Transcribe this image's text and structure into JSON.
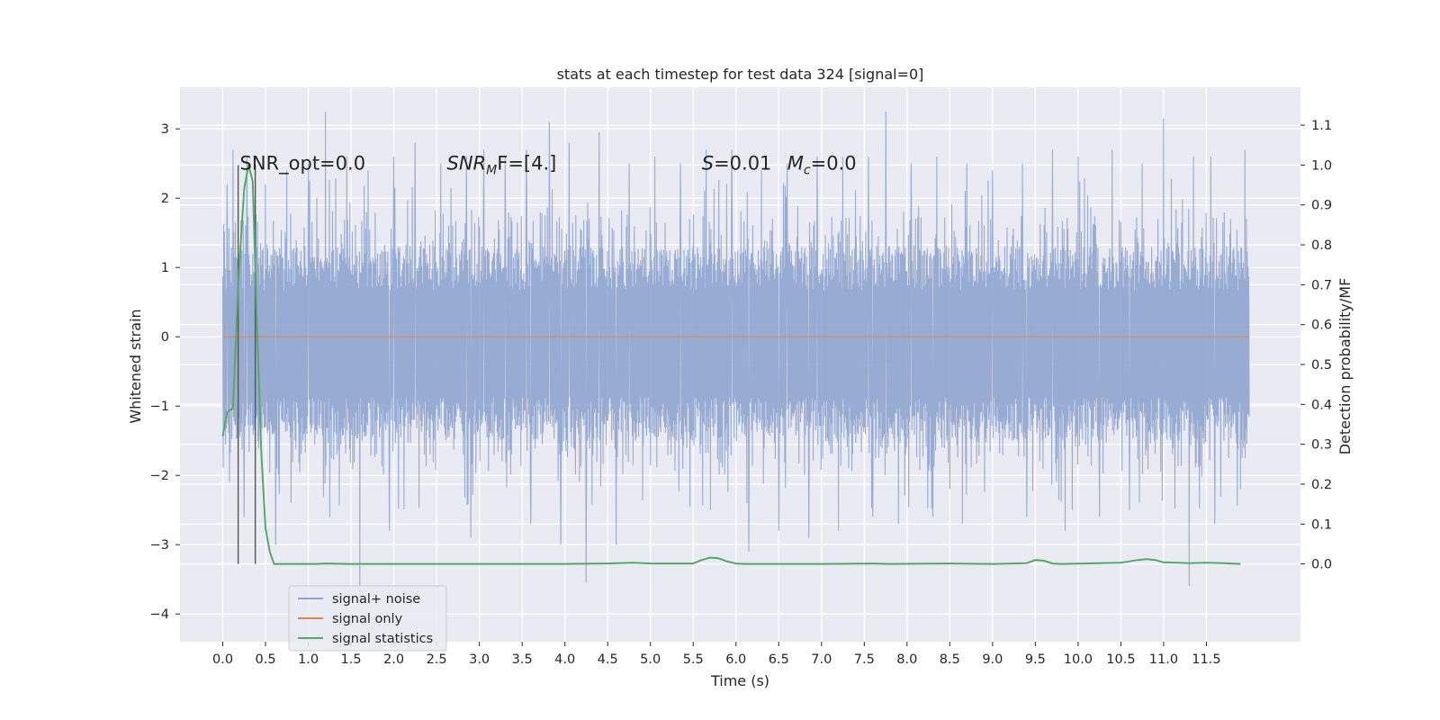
{
  "chart_data": {
    "type": "line",
    "title": "stats at each timestep for test data 324 [signal=0]",
    "xlabel": "Time (s)",
    "ylabel": "Whitened strain",
    "ylabel_right": "Detection probability/MF",
    "xlim": [
      -0.5,
      12.6
    ],
    "ylim": [
      -4.4,
      3.6
    ],
    "ylim_right": [
      -0.195,
      1.195
    ],
    "x_ticks": [
      0.0,
      0.5,
      1.0,
      1.5,
      2.0,
      2.5,
      3.0,
      3.5,
      4.0,
      4.5,
      5.0,
      5.5,
      6.0,
      6.5,
      7.0,
      7.5,
      8.0,
      8.5,
      9.0,
      9.5,
      10.0,
      10.5,
      11.0,
      11.5
    ],
    "x_tick_labels": [
      "0.0",
      "0.5",
      "1.0",
      "1.5",
      "2.0",
      "2.5",
      "3.0",
      "3.5",
      "4.0",
      "4.5",
      "5.0",
      "5.5",
      "6.0",
      "6.5",
      "7.0",
      "7.5",
      "8.0",
      "8.5",
      "9.0",
      "9.5",
      "10.0",
      "10.5",
      "11.0",
      "11.5"
    ],
    "y_ticks": [
      -4,
      -3,
      -2,
      -1,
      0,
      1,
      2,
      3
    ],
    "y_tick_labels": [
      "−4",
      "−3",
      "−2",
      "−1",
      "0",
      "1",
      "2",
      "3"
    ],
    "y_ticks_right": [
      0.0,
      0.1,
      0.2,
      0.3,
      0.4,
      0.5,
      0.6,
      0.7,
      0.8,
      0.9,
      1.0,
      1.1
    ],
    "y_tick_labels_right": [
      "0.0",
      "0.1",
      "0.2",
      "0.3",
      "0.4",
      "0.5",
      "0.6",
      "0.7",
      "0.8",
      "0.9",
      "1.0",
      "1.1"
    ],
    "grid": true,
    "legend_position": "lower-left",
    "series": [
      {
        "name": "signal+ noise",
        "axis": "left",
        "color": "#8fa4cf",
        "x_range": [
          0.0,
          12.0
        ],
        "envelope_core": [
          -1.55,
          1.35
        ],
        "peaks_pos_x": [
          0.05,
          0.12,
          0.28,
          0.5,
          0.75,
          1.0,
          1.2,
          1.45,
          1.7,
          2.0,
          2.25,
          2.55,
          2.85,
          3.05,
          3.3,
          3.55,
          3.82,
          4.05,
          4.4,
          4.75,
          5.05,
          5.35,
          5.65,
          5.95,
          6.3,
          6.6,
          6.95,
          7.25,
          7.55,
          7.75,
          8.05,
          8.35,
          8.7,
          9.0,
          9.35,
          9.7,
          10.0,
          10.4,
          10.75,
          11.0,
          11.35,
          11.55,
          11.95
        ],
        "peaks_pos_y": [
          2.2,
          2.7,
          2.6,
          2.2,
          2.4,
          2.5,
          3.25,
          2.6,
          2.4,
          2.6,
          2.8,
          2.5,
          2.6,
          2.7,
          2.6,
          2.7,
          3.1,
          2.8,
          2.95,
          2.5,
          2.6,
          2.5,
          2.7,
          2.7,
          2.4,
          2.5,
          2.6,
          2.6,
          2.6,
          3.25,
          2.5,
          2.6,
          2.5,
          2.4,
          2.5,
          2.7,
          2.6,
          2.7,
          2.5,
          3.15,
          2.6,
          2.6,
          2.7
        ],
        "peaks_neg_x": [
          0.08,
          0.25,
          0.62,
          0.8,
          1.25,
          1.6,
          1.95,
          2.55,
          2.9,
          3.3,
          3.6,
          3.95,
          4.25,
          4.6,
          5.05,
          5.35,
          5.7,
          6.15,
          6.5,
          6.85,
          7.2,
          7.6,
          7.9,
          8.3,
          8.65,
          9.0,
          9.4,
          9.85,
          10.25,
          10.6,
          11.0,
          11.3,
          11.6,
          11.9
        ],
        "peaks_neg_y": [
          -2.1,
          -2.6,
          -3.0,
          -2.4,
          -2.6,
          -3.7,
          -2.8,
          -2.6,
          -2.9,
          -2.6,
          -2.7,
          -3.0,
          -3.55,
          -3.0,
          -2.9,
          -2.6,
          -2.5,
          -3.1,
          -2.8,
          -2.9,
          -2.8,
          -2.6,
          -2.7,
          -2.6,
          -2.7,
          -2.6,
          -2.6,
          -2.8,
          -2.6,
          -2.5,
          -2.8,
          -3.6,
          -2.7,
          -2.2
        ]
      },
      {
        "name": "signal only",
        "axis": "left",
        "color": "#dd8452",
        "x": [
          0.0,
          12.0
        ],
        "y": [
          0.0,
          0.0
        ]
      },
      {
        "name": "signal statistics",
        "axis": "right",
        "color": "#55a868",
        "x": [
          0.0,
          0.05,
          0.12,
          0.18,
          0.25,
          0.3,
          0.35,
          0.4,
          0.45,
          0.5,
          0.55,
          0.6,
          0.65,
          0.8,
          1.0,
          1.1,
          1.2,
          1.5,
          2.0,
          3.0,
          4.0,
          4.5,
          4.8,
          5.0,
          5.5,
          5.6,
          5.7,
          5.8,
          5.9,
          6.0,
          6.1,
          6.5,
          7.0,
          7.6,
          7.8,
          8.5,
          9.0,
          9.4,
          9.5,
          9.6,
          9.7,
          9.8,
          10.5,
          10.7,
          10.8,
          10.9,
          11.0,
          11.3,
          11.5,
          11.7,
          11.9
        ],
        "y": [
          0.32,
          0.38,
          0.39,
          0.7,
          0.94,
          1.0,
          0.96,
          0.6,
          0.28,
          0.09,
          0.03,
          0.0,
          0.0,
          0.0,
          0.0,
          0.0,
          0.001,
          0.0,
          0.0,
          0.0,
          0.0,
          0.001,
          0.003,
          0.001,
          0.001,
          0.01,
          0.016,
          0.014,
          0.006,
          0.001,
          0.0,
          0.0,
          0.0,
          0.001,
          0.0,
          0.001,
          0.0,
          0.002,
          0.01,
          0.008,
          0.001,
          0.0,
          0.003,
          0.01,
          0.012,
          0.01,
          0.004,
          0.002,
          0.003,
          0.002,
          0.0
        ]
      }
    ],
    "vlines": {
      "color": "#555555",
      "x": [
        0.18,
        0.38
      ],
      "y_top_right": 1.0,
      "y_bottom_right": 0.0
    },
    "annotations": [
      {
        "x": 0.2,
        "y": 2.5,
        "prefix": "SNR_opt=0.0",
        "italic": "",
        "sub": "",
        "suffix": ""
      },
      {
        "x": 2.62,
        "y": 2.5,
        "prefix": "",
        "italic": "SNR",
        "sub": "M",
        "suffix": "F=[4.]"
      },
      {
        "x": 5.6,
        "y": 2.5,
        "prefix": "",
        "italic": "S",
        "sub": "",
        "suffix": "=0.01"
      },
      {
        "x": 6.6,
        "y": 2.5,
        "prefix": "",
        "italic": "M",
        "sub": "c",
        "suffix": "=0.0"
      }
    ]
  }
}
